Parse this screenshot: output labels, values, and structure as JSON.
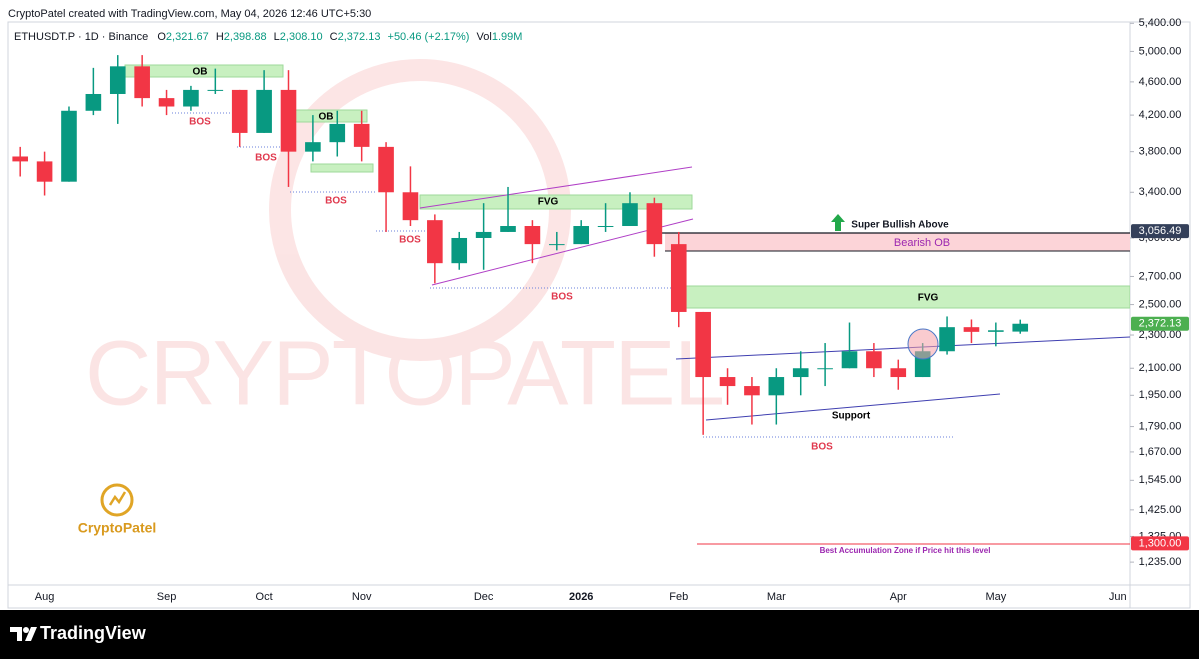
{
  "header": {
    "attribution": "CryptoPatel created with TradingView.com, May 04, 2026 12:46 UTC+5:30",
    "symbol": "ETHUSDT.P · 1D · Binance",
    "ohlc": [
      {
        "key": "O",
        "value": "2,321.67"
      },
      {
        "key": "H",
        "value": "2,398.88"
      },
      {
        "key": "L",
        "value": "2,308.10"
      },
      {
        "key": "C",
        "value": "2,372.13"
      }
    ],
    "change": "+50.46 (+2.17%)",
    "volume_key": "Vol",
    "volume": "1.99M"
  },
  "watermark": "CRYPTOPATEL",
  "logo": "CryptoPatel",
  "footer": "TradingView",
  "annotations": [
    "OB",
    "OB",
    "BOS",
    "BOS",
    "BOS",
    "BOS",
    "FVG",
    "BOS",
    "Super Bullish Above",
    "Bearish OB",
    "FVG",
    "Support",
    "BOS",
    "Best Accumulation Zone if Price hit this level"
  ],
  "chart_data": {
    "type": "candlestick",
    "log_scale": true,
    "grid": false,
    "up_color": "#089981",
    "down_color": "#f23645",
    "categories": [
      null,
      "Aug",
      null,
      null,
      null,
      null,
      "Sep",
      null,
      null,
      null,
      "Oct",
      null,
      null,
      null,
      "Nov",
      null,
      null,
      null,
      null,
      "Dec",
      null,
      null,
      null,
      "2026",
      null,
      null,
      null,
      "Feb",
      null,
      null,
      null,
      "Mar",
      null,
      null,
      null,
      null,
      "Apr",
      null,
      null,
      null,
      "May",
      null,
      null,
      null,
      null,
      "Jun"
    ],
    "open": [
      3750,
      3700,
      3500,
      4250,
      4450,
      4800,
      4400,
      4300,
      4500,
      4500,
      4000,
      4500,
      3800,
      3900,
      4100,
      3850,
      3400,
      3150,
      2800,
      3000,
      3050,
      3100,
      2950,
      2950,
      3100,
      3100,
      3300,
      2950,
      2450,
      2050,
      2000,
      1950,
      2050,
      2100,
      2100,
      2200,
      2100,
      2050,
      2200,
      2350,
      2320,
      2321.67,
      null,
      null,
      null,
      null
    ],
    "high": [
      3850,
      3800,
      4300,
      4780,
      4950,
      4950,
      4500,
      4550,
      4770,
      4500,
      4750,
      4750,
      4200,
      4250,
      4250,
      3900,
      3650,
      3200,
      3050,
      3300,
      3450,
      3150,
      3050,
      3150,
      3300,
      3400,
      3350,
      3050,
      2450,
      2100,
      2050,
      2100,
      2200,
      2250,
      2380,
      2250,
      2150,
      2250,
      2420,
      2400,
      2380,
      2398.88,
      null,
      null,
      null,
      null
    ],
    "low": [
      3550,
      3370,
      3500,
      4200,
      4100,
      4300,
      4200,
      4250,
      4450,
      3850,
      4000,
      3450,
      3700,
      3750,
      3700,
      3050,
      3100,
      2650,
      2750,
      2750,
      3050,
      2800,
      2900,
      2950,
      3050,
      3100,
      2850,
      2350,
      1750,
      1900,
      1800,
      1800,
      1950,
      2000,
      2100,
      2050,
      1980,
      2050,
      2180,
      2250,
      2230,
      2308.1,
      null,
      null,
      null,
      null
    ],
    "close": [
      3700,
      3500,
      4250,
      4450,
      4800,
      4400,
      4300,
      4500,
      4500,
      4000,
      4500,
      3800,
      3900,
      4100,
      3850,
      3400,
      3150,
      2800,
      3000,
      3050,
      3100,
      2950,
      2950,
      3100,
      3100,
      3300,
      2950,
      2450,
      2050,
      2000,
      1950,
      2050,
      2100,
      2100,
      2200,
      2100,
      2050,
      2200,
      2350,
      2320,
      2330,
      2372.13,
      null,
      null,
      null,
      null
    ],
    "ylim": [
      1160,
      5570
    ],
    "yticks": [
      {
        "value": 5400,
        "label": "5,400.00"
      },
      {
        "value": 5000,
        "label": "5,000.00"
      },
      {
        "value": 4600,
        "label": "4,600.00"
      },
      {
        "value": 4200,
        "label": "4,200.00"
      },
      {
        "value": 3800,
        "label": "3,800.00"
      },
      {
        "value": 3400,
        "label": "3,400.00"
      },
      {
        "value": 3000,
        "label": "3,000.00"
      },
      {
        "value": 2700,
        "label": "2,700.00"
      },
      {
        "value": 2500,
        "label": "2,500.00"
      },
      {
        "value": 2300,
        "label": "2,300.00"
      },
      {
        "value": 2100,
        "label": "2,100.00"
      },
      {
        "value": 1950,
        "label": "1,950.00"
      },
      {
        "value": 1790,
        "label": "1,790.00"
      },
      {
        "value": 1670,
        "label": "1,670.00"
      },
      {
        "value": 1545,
        "label": "1,545.00"
      },
      {
        "value": 1425,
        "label": "1,425.00"
      },
      {
        "value": 1325,
        "label": "1,325.00"
      },
      {
        "value": 1235,
        "label": "1,235.00"
      }
    ],
    "price_labels": [
      {
        "value": 3056.49,
        "label": "3,056.49",
        "color": "#34405a"
      },
      {
        "value": 2372.13,
        "label": "2,372.13",
        "color": "#4caf50"
      },
      {
        "value": 1300,
        "label": "1,300.00",
        "color": "#f23645"
      }
    ]
  }
}
